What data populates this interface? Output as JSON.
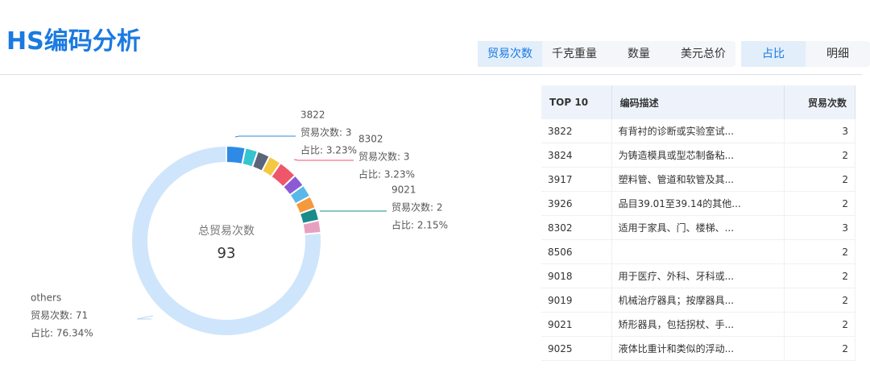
{
  "header": {
    "title": "HS编码分析",
    "metric_tabs": [
      "贸易次数",
      "千克重量",
      "数量",
      "美元总价"
    ],
    "view_tabs": [
      "占比",
      "明细"
    ]
  },
  "chart_data": {
    "type": "pie",
    "categories": [
      "3822",
      "3824",
      "3917",
      "3926",
      "8302",
      "8506",
      "9018",
      "9019",
      "9021",
      "9025",
      "others"
    ],
    "values": [
      3,
      2,
      2,
      2,
      3,
      2,
      2,
      2,
      2,
      2,
      71
    ],
    "value_labels": [
      "贸易次数: 3",
      null,
      null,
      null,
      "贸易次数: 3",
      null,
      null,
      null,
      "贸易次数: 2",
      null,
      "贸易次数: 71"
    ],
    "percent_labels": [
      "占比: 3.23%",
      null,
      null,
      null,
      "占比: 3.23%",
      null,
      null,
      null,
      "占比: 2.15%",
      null,
      "占比: 76.34%"
    ],
    "colors": [
      "#2f8ae6",
      "#36c5d0",
      "#5b6478",
      "#f5c842",
      "#f0566a",
      "#8b5bd6",
      "#5ab8e8",
      "#f5993d",
      "#1a8a8a",
      "#e8a0c0",
      "#cfe5fb"
    ],
    "center_label": "总贸易次数",
    "total": 93
  },
  "table": {
    "headers": [
      "TOP 10",
      "编码描述",
      "贸易次数"
    ],
    "rows": [
      [
        "3822",
        "有背衬的诊断或实验室试...",
        "3"
      ],
      [
        "3824",
        "为铸造模具或型芯制备粘...",
        "2"
      ],
      [
        "3917",
        "塑料管、管道和软管及其...",
        "2"
      ],
      [
        "3926",
        "品目39.01至39.14的其他...",
        "2"
      ],
      [
        "8302",
        "适用于家具、门、楼梯、...",
        "3"
      ],
      [
        "8506",
        "",
        "2"
      ],
      [
        "9018",
        "用于医疗、外科、牙科或...",
        "2"
      ],
      [
        "9019",
        "机械治疗器具；按摩器具...",
        "2"
      ],
      [
        "9021",
        "矫形器具，包括拐杖、手...",
        "2"
      ],
      [
        "9025",
        "液体比重计和类似的浮动...",
        "2"
      ]
    ]
  }
}
